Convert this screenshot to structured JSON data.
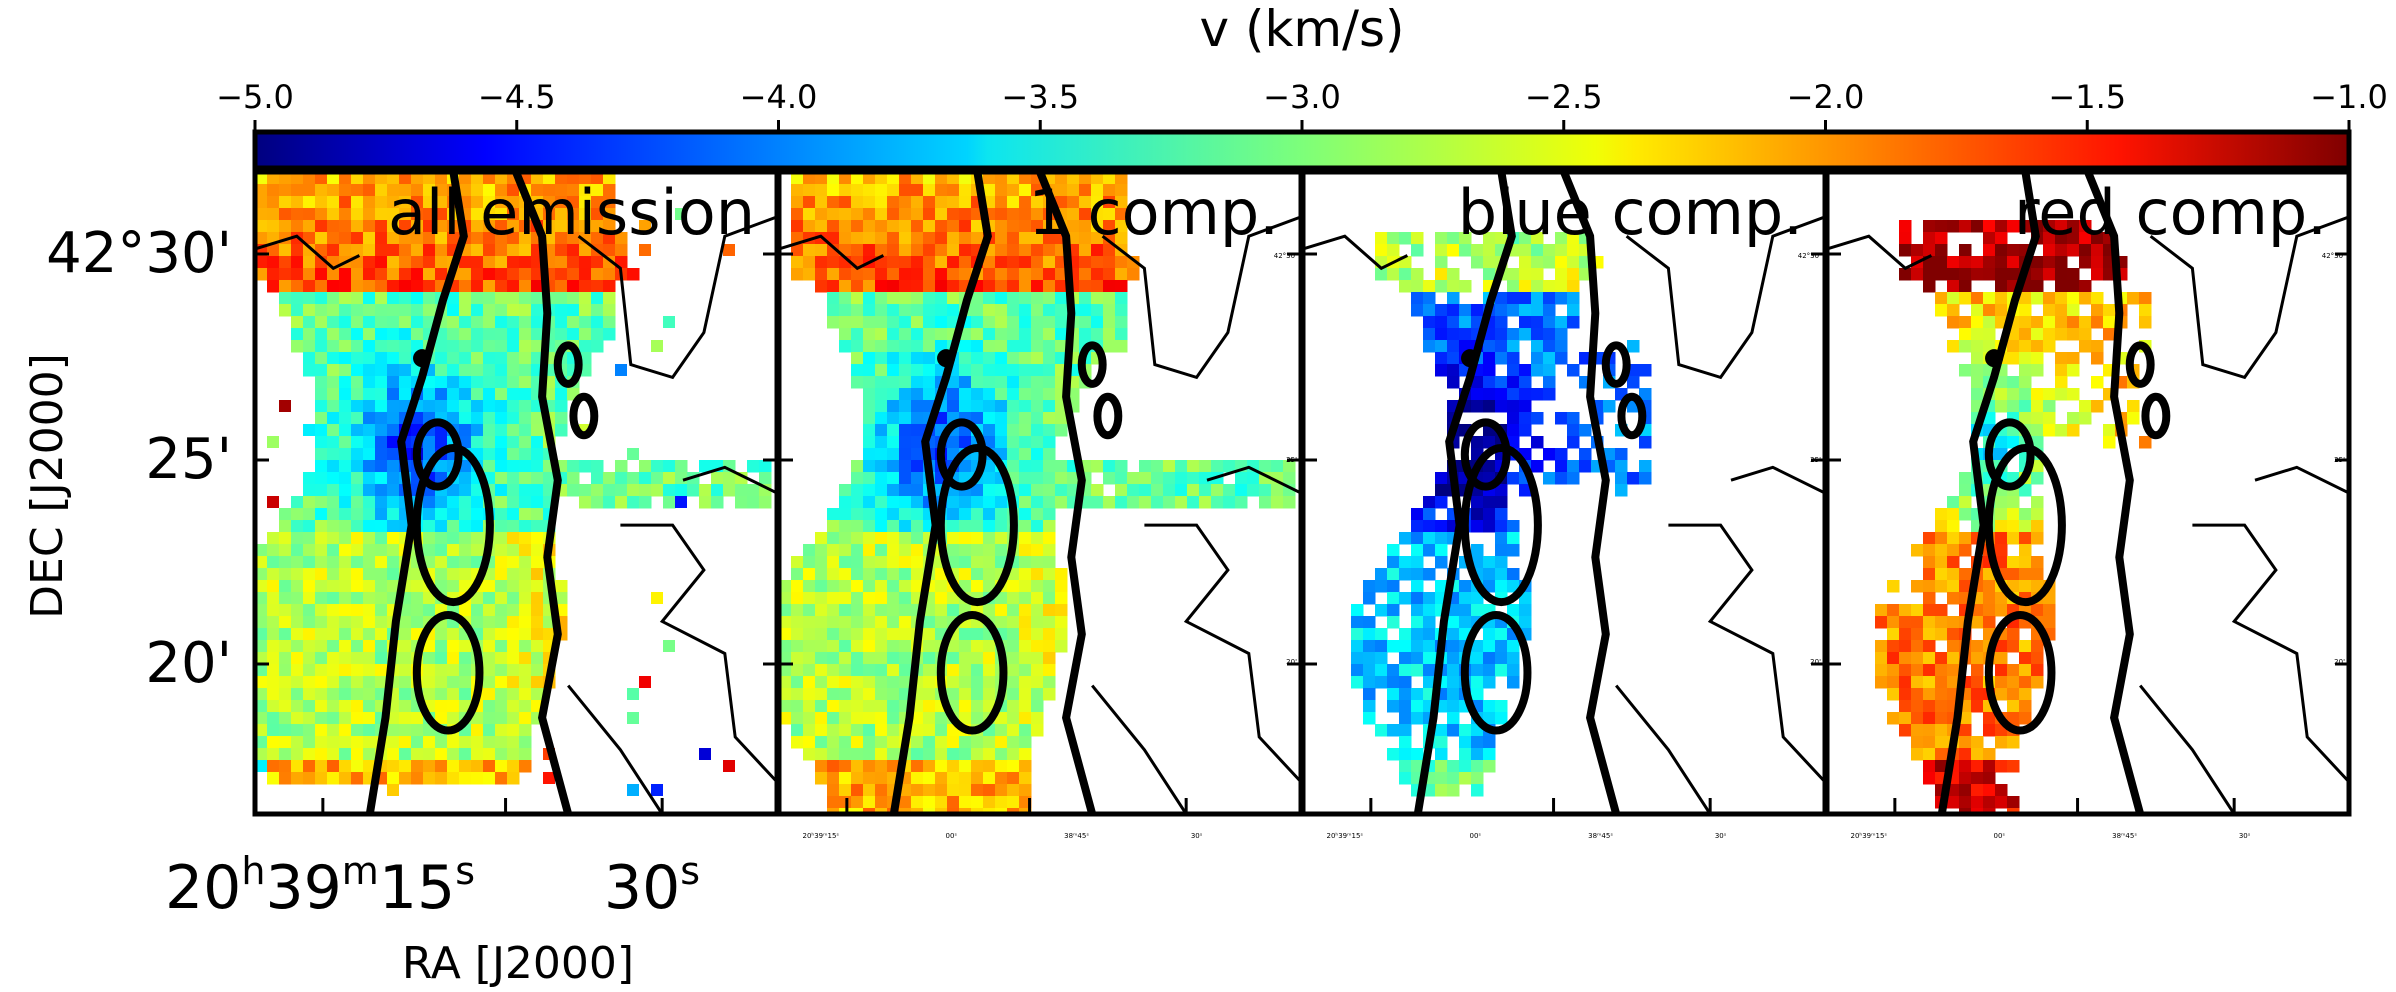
{
  "chart_data": {
    "type": "heatmap",
    "colorbar": {
      "title": "v (km/s)",
      "range": [
        -5.0,
        -1.0
      ],
      "ticks": [
        "−5.0",
        "−4.5",
        "−4.0",
        "−3.5",
        "−3.0",
        "−2.5",
        "−2.0",
        "−1.5",
        "−1.0"
      ],
      "tick_values": [
        -5.0,
        -4.5,
        -4.0,
        -3.5,
        -3.0,
        -2.5,
        -2.0,
        -1.5,
        -1.0
      ],
      "colormap": "jet"
    },
    "panels": [
      {
        "label": "all emission"
      },
      {
        "label": "1 comp."
      },
      {
        "label": "blue comp."
      },
      {
        "label": "red comp."
      }
    ],
    "dec_axis": {
      "label": "DEC [J2000]",
      "ticks": [
        {
          "text": "42°30'",
          "arcmin": 30
        },
        {
          "text": "25'",
          "arcmin": 25
        },
        {
          "text": "20'",
          "arcmin": 20
        }
      ]
    },
    "ra_axis": {
      "label": "RA [J2000]",
      "ticks": [
        {
          "h": "20",
          "m": "39",
          "s": "15"
        },
        {
          "s": "30"
        }
      ]
    },
    "small_labels": {
      "ra_ticks": [
        "20ʰ39ᵐ15ˢ",
        "00ˢ",
        "38ᵐ45ˢ",
        "30ˢ"
      ],
      "dec_ticks": [
        "42°30'",
        "25'",
        "20'"
      ]
    }
  }
}
